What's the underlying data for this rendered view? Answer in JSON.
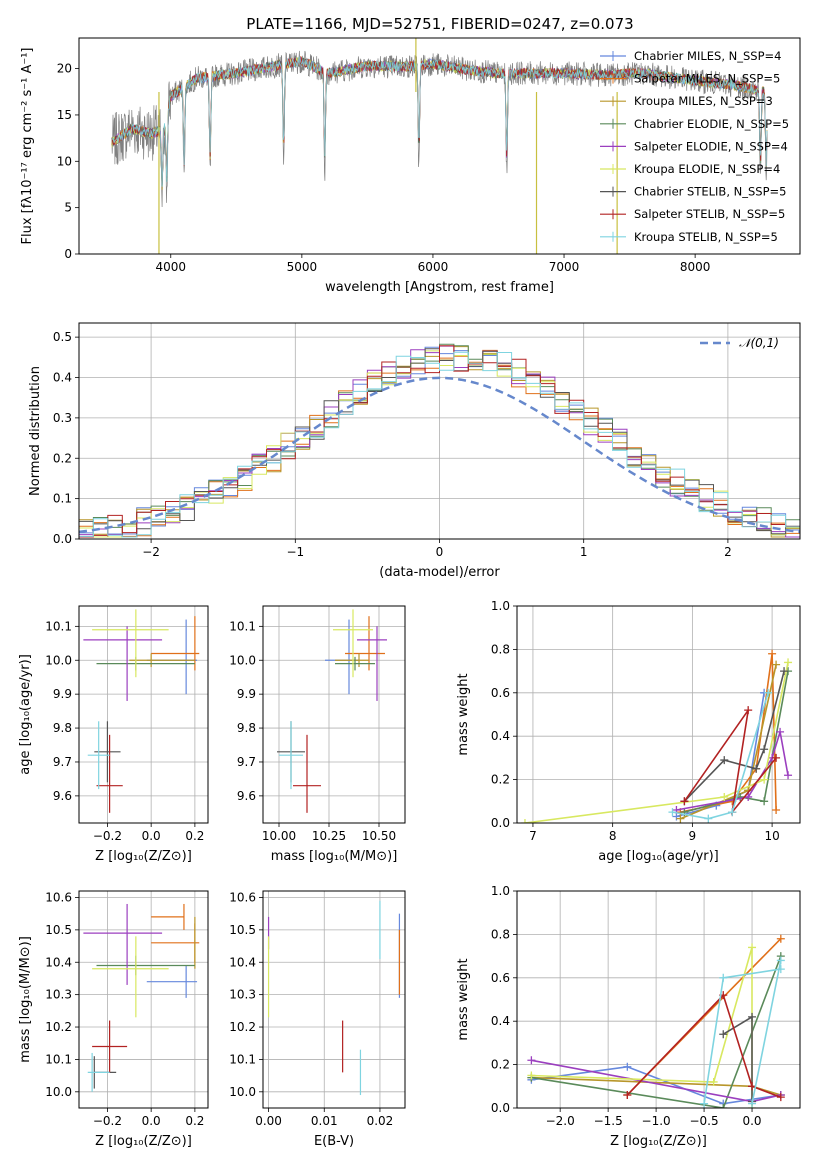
{
  "title": "PLATE=1166, MJD=52751, FIBERID=0247, z=0.073",
  "colors": {
    "Chabrier MILES": "#6688dd",
    "Salpeter MILES": "#e0701a",
    "Kroupa MILES": "#b8962a",
    "Chabrier ELODIE": "#5a8a5a",
    "Salpeter ELODIE": "#9b3fbf",
    "Kroupa ELODIE": "#d8e860",
    "Chabrier STELIB": "#555555",
    "Salpeter STELIB": "#b22222",
    "Kroupa STELIB": "#7fd4e0",
    "gaussian": "#6688cc",
    "data": "#808080"
  },
  "chart_data": [
    {
      "type": "line",
      "xlabel": "wavelength [Angstrom, rest frame]",
      "ylabel": "Flux [fλ10⁻¹⁷ erg cm⁻² s⁻¹ A⁻¹]",
      "xlim": [
        3300,
        8800
      ],
      "ylim": [
        0,
        23.3
      ],
      "xticks": [
        "4000",
        "5000",
        "6000",
        "7000",
        "8000"
      ],
      "yticks": [
        "0",
        "5",
        "10",
        "15",
        "20"
      ],
      "legend": [
        "Chabrier MILES, N_SSP=4",
        "Salpeter MILES, N_SSP=5",
        "Kroupa MILES, N_SSP=3",
        "Chabrier ELODIE, N_SSP=5",
        "Salpeter ELODIE, N_SSP=4",
        "Kroupa ELODIE, N_SSP=4",
        "Chabrier STELIB, N_SSP=5",
        "Salpeter STELIB, N_SSP=5",
        "Kroupa STELIB, N_SSP=5"
      ],
      "legend_position": "upper right",
      "continuum": [
        [
          3550,
          12
        ],
        [
          3700,
          13.5
        ],
        [
          3850,
          13
        ],
        [
          3950,
          13.5
        ],
        [
          4000,
          17
        ],
        [
          4200,
          19
        ],
        [
          4500,
          19.5
        ],
        [
          4800,
          20.3
        ],
        [
          5000,
          20.8
        ],
        [
          5200,
          19.5
        ],
        [
          5500,
          20.3
        ],
        [
          5800,
          20.2
        ],
        [
          6000,
          20.5
        ],
        [
          6300,
          19.8
        ],
        [
          6500,
          19.5
        ],
        [
          6800,
          19.5
        ],
        [
          7000,
          19.5
        ],
        [
          7300,
          19.3
        ],
        [
          7600,
          19.5
        ],
        [
          8000,
          18.7
        ],
        [
          8300,
          18.2
        ],
        [
          8550,
          17.5
        ]
      ],
      "absorption_features": [
        [
          3934,
          8.5
        ],
        [
          3969,
          9.5
        ],
        [
          4102,
          15.5
        ],
        [
          4300,
          16.5
        ],
        [
          4861,
          17.5
        ],
        [
          5175,
          15.5
        ],
        [
          5893,
          16.5
        ],
        [
          6563,
          17.2
        ],
        [
          8498,
          13.5
        ],
        [
          8542,
          14.5
        ],
        [
          8662,
          14.5
        ]
      ],
      "spikes": [
        [
          3910,
          0
        ],
        [
          5870,
          23.3
        ],
        [
          6790,
          0
        ],
        [
          7405,
          0
        ]
      ]
    },
    {
      "type": "bar",
      "xlabel": "(data-model)/error",
      "ylabel": "Normed distribution",
      "xlim": [
        -2.5,
        2.5
      ],
      "ylim": [
        0,
        0.535
      ],
      "xticks": [
        "−2",
        "−1",
        "0",
        "1",
        "2"
      ],
      "yticks": [
        "0.0",
        "0.1",
        "0.2",
        "0.3",
        "0.4",
        "0.5"
      ],
      "legend": [
        "𝒩(0,1)"
      ],
      "legend_position": "upper right",
      "bin_edges_start": -2.5,
      "bin_width": 0.1,
      "bins": 50
    },
    {
      "type": "scatter",
      "xlabel": "Z [log₁₀(Z/Z⊙)]",
      "ylabel": "age  [log₁₀(age/yr)]",
      "xlim": [
        -0.33,
        0.26
      ],
      "ylim": [
        9.52,
        10.16
      ],
      "xticks": [
        "−0.2",
        "0.0",
        "0.2"
      ],
      "yticks": [
        "9.6",
        "9.7",
        "9.8",
        "9.9",
        "10.0",
        "10.1"
      ],
      "points": [
        {
          "series": "Chabrier MILES",
          "x": 0.16,
          "y": 10.0,
          "xerr": [
            0.18,
            0.05
          ],
          "yerr": [
            0.1,
            0.12
          ]
        },
        {
          "series": "Salpeter MILES",
          "x": 0.2,
          "y": 10.02,
          "xerr": [
            0.2,
            0.02
          ],
          "yerr": [
            0.05,
            0.11
          ]
        },
        {
          "series": "Kroupa MILES",
          "x": 0.0,
          "y": 10.0,
          "xerr": [
            0.1,
            0.2
          ],
          "yerr": [
            0.02,
            0.02
          ]
        },
        {
          "series": "Chabrier ELODIE",
          "x": -0.07,
          "y": 9.99,
          "xerr": [
            0.18,
            0.27
          ],
          "yerr": [
            0.02,
            0.02
          ]
        },
        {
          "series": "Salpeter ELODIE",
          "x": -0.11,
          "y": 10.06,
          "xerr": [
            0.2,
            0.16
          ],
          "yerr": [
            0.18,
            0.04
          ]
        },
        {
          "series": "Kroupa ELODIE",
          "x": -0.07,
          "y": 10.09,
          "xerr": [
            0.2,
            0.15
          ],
          "yerr": [
            0.14,
            0.06
          ]
        },
        {
          "series": "Chabrier STELIB",
          "x": -0.2,
          "y": 9.73,
          "xerr": [
            0.06,
            0.06
          ],
          "yerr": [
            0.09,
            0.09
          ]
        },
        {
          "series": "Salpeter STELIB",
          "x": -0.19,
          "y": 9.63,
          "xerr": [
            0.06,
            0.06
          ],
          "yerr": [
            0.08,
            0.15
          ]
        },
        {
          "series": "Kroupa STELIB",
          "x": -0.24,
          "y": 9.72,
          "xerr": [
            0.05,
            0.05
          ],
          "yerr": [
            0.1,
            0.1
          ]
        }
      ]
    },
    {
      "type": "scatter",
      "xlabel": "mass [log₁₀(M/M⊙)]",
      "ylabel": "",
      "xlim": [
        9.92,
        10.63
      ],
      "ylim": [
        9.52,
        10.16
      ],
      "xticks": [
        "10.00",
        "10.25",
        "10.50"
      ],
      "yticks": [
        "9.6",
        "9.7",
        "9.8",
        "9.9",
        "10.0",
        "10.1"
      ],
      "points": [
        {
          "series": "Chabrier MILES",
          "x": 10.35,
          "y": 10.0,
          "xerr": [
            0.12,
            0.05
          ],
          "yerr": [
            0.1,
            0.12
          ]
        },
        {
          "series": "Salpeter MILES",
          "x": 10.45,
          "y": 10.02,
          "xerr": [
            0.12,
            0.08
          ],
          "yerr": [
            0.05,
            0.11
          ]
        },
        {
          "series": "Kroupa MILES",
          "x": 10.4,
          "y": 10.0,
          "xerr": [
            0.12,
            0.05
          ],
          "yerr": [
            0.02,
            0.02
          ]
        },
        {
          "series": "Chabrier ELODIE",
          "x": 10.38,
          "y": 9.99,
          "xerr": [
            0.1,
            0.1
          ],
          "yerr": [
            0.02,
            0.02
          ]
        },
        {
          "series": "Salpeter ELODIE",
          "x": 10.49,
          "y": 10.06,
          "xerr": [
            0.1,
            0.05
          ],
          "yerr": [
            0.18,
            0.04
          ]
        },
        {
          "series": "Kroupa ELODIE",
          "x": 10.37,
          "y": 10.09,
          "xerr": [
            0.1,
            0.1
          ],
          "yerr": [
            0.14,
            0.06
          ]
        },
        {
          "series": "Chabrier STELIB",
          "x": 10.06,
          "y": 9.73,
          "xerr": [
            0.07,
            0.07
          ],
          "yerr": [
            0.09,
            0.09
          ]
        },
        {
          "series": "Salpeter STELIB",
          "x": 10.14,
          "y": 9.63,
          "xerr": [
            0.07,
            0.07
          ],
          "yerr": [
            0.08,
            0.15
          ]
        },
        {
          "series": "Kroupa STELIB",
          "x": 10.06,
          "y": 9.72,
          "xerr": [
            0.06,
            0.06
          ],
          "yerr": [
            0.1,
            0.1
          ]
        }
      ]
    },
    {
      "type": "line",
      "xlabel": "age  [log₁₀(age/yr)]",
      "ylabel": "mass weight",
      "xlim": [
        6.8,
        10.35
      ],
      "ylim": [
        0,
        1.0
      ],
      "xticks": [
        "7",
        "8",
        "9",
        "10"
      ],
      "yticks": [
        "0.0",
        "0.2",
        "0.4",
        "0.6",
        "0.8",
        "1.0"
      ],
      "series": [
        {
          "name": "Chabrier MILES",
          "x": [
            8.8,
            9.3,
            9.7,
            9.9
          ],
          "y": [
            0.03,
            0.08,
            0.15,
            0.6
          ]
        },
        {
          "name": "Salpeter MILES",
          "x": [
            8.85,
            9.5,
            9.8,
            10.0,
            10.05
          ],
          "y": [
            0.05,
            0.1,
            0.25,
            0.78,
            0.06
          ]
        },
        {
          "name": "Kroupa MILES",
          "x": [
            8.85,
            9.7,
            10.05
          ],
          "y": [
            0.02,
            0.15,
            0.73
          ]
        },
        {
          "name": "Chabrier ELODIE",
          "x": [
            8.9,
            9.6,
            9.9,
            10.2
          ],
          "y": [
            0.05,
            0.12,
            0.1,
            0.7
          ]
        },
        {
          "name": "Salpeter ELODIE",
          "x": [
            8.8,
            9.7,
            10.0,
            10.1,
            10.2
          ],
          "y": [
            0.06,
            0.12,
            0.3,
            0.42,
            0.22
          ]
        },
        {
          "name": "Kroupa ELODIE",
          "x": [
            6.9,
            9.4,
            9.9,
            10.2
          ],
          "y": [
            0.0,
            0.12,
            0.2,
            0.74
          ]
        },
        {
          "name": "Chabrier STELIB",
          "x": [
            8.9,
            9.4,
            9.8,
            9.9,
            10.15
          ],
          "y": [
            0.1,
            0.29,
            0.25,
            0.34,
            0.7
          ]
        },
        {
          "name": "Salpeter STELIB",
          "x": [
            8.9,
            9.7,
            9.5,
            10.05
          ],
          "y": [
            0.1,
            0.52,
            0.05,
            0.3
          ]
        },
        {
          "name": "Kroupa STELIB",
          "x": [
            8.75,
            9.2,
            9.5,
            9.95
          ],
          "y": [
            0.05,
            0.02,
            0.05,
            0.6
          ]
        }
      ]
    },
    {
      "type": "scatter",
      "xlabel": "Z [log₁₀(Z/Z⊙)]",
      "ylabel": "mass [log₁₀(M/M⊙)]",
      "xlim": [
        -0.33,
        0.26
      ],
      "ylim": [
        9.95,
        10.62
      ],
      "xticks": [
        "−0.2",
        "0.0",
        "0.2"
      ],
      "yticks": [
        "10.0",
        "10.1",
        "10.2",
        "10.3",
        "10.4",
        "10.5",
        "10.6"
      ],
      "points": [
        {
          "series": "Chabrier MILES",
          "x": 0.16,
          "y": 10.34,
          "xerr": [
            0.18,
            0.05
          ],
          "yerr": [
            0.05,
            0.05
          ]
        },
        {
          "series": "Salpeter MILES",
          "x": 0.2,
          "y": 10.46,
          "xerr": [
            0.2,
            0.02
          ],
          "yerr": [
            0.06,
            0.06
          ]
        },
        {
          "series": "Kroupa MILES",
          "x": 0.2,
          "y": 10.46,
          "xerr": [
            0.0,
            0.0
          ],
          "yerr": [
            0.08,
            0.08
          ]
        },
        {
          "series": "Chabrier ELODIE",
          "x": -0.07,
          "y": 10.39,
          "xerr": [
            0.18,
            0.27
          ],
          "yerr": [
            0.03,
            0.03
          ]
        },
        {
          "series": "Salpeter ELODIE",
          "x": -0.11,
          "y": 10.49,
          "xerr": [
            0.2,
            0.16
          ],
          "yerr": [
            0.16,
            0.09
          ]
        },
        {
          "series": "Kroupa ELODIE",
          "x": -0.07,
          "y": 10.38,
          "xerr": [
            0.2,
            0.15
          ],
          "yerr": [
            0.15,
            0.1
          ]
        },
        {
          "series": "Chabrier STELIB",
          "x": -0.26,
          "y": 10.06,
          "xerr": [
            0.0,
            0.1
          ],
          "yerr": [
            0.05,
            0.05
          ]
        },
        {
          "series": "Salpeter STELIB",
          "x": -0.19,
          "y": 10.14,
          "xerr": [
            0.08,
            0.08
          ],
          "yerr": [
            0.08,
            0.08
          ]
        },
        {
          "series": "Kroupa STELIB",
          "x": -0.27,
          "y": 10.06,
          "xerr": [
            0.02,
            0.08
          ],
          "yerr": [
            0.06,
            0.06
          ]
        },
        {
          "series": "Salpeter MILES",
          "x": 0.0,
          "y": 10.54,
          "xerr": [
            0.0,
            0.15
          ],
          "yerr": [
            0.0,
            0.0
          ]
        },
        {
          "series": "Salpeter MILES",
          "x": 0.15,
          "y": 10.54,
          "xerr": [
            0.0,
            0.0
          ],
          "yerr": [
            0.04,
            0.04
          ]
        }
      ]
    },
    {
      "type": "scatter",
      "xlabel": "E(B-V)",
      "ylabel": "",
      "xlim": [
        -0.001,
        0.0245
      ],
      "ylim": [
        9.95,
        10.62
      ],
      "xticks": [
        "0.00",
        "0.01",
        "0.02"
      ],
      "yticks": [
        "10.0",
        "10.1",
        "10.2",
        "10.3",
        "10.4",
        "10.5",
        "10.6"
      ],
      "points": [
        {
          "series": "Salpeter ELODIE",
          "x": 0.0,
          "y": 10.49,
          "xerr": [
            0,
            0
          ],
          "yerr": [
            0.05,
            0.05
          ]
        },
        {
          "series": "Kroupa ELODIE",
          "x": 0.0,
          "y": 10.38,
          "xerr": [
            0,
            0
          ],
          "yerr": [
            0.15,
            0.1
          ]
        },
        {
          "series": "Salpeter STELIB",
          "x": 0.0133,
          "y": 10.14,
          "xerr": [
            0,
            0
          ],
          "yerr": [
            0.08,
            0.08
          ]
        },
        {
          "series": "Kroupa STELIB",
          "x": 0.0165,
          "y": 10.06,
          "xerr": [
            0,
            0
          ],
          "yerr": [
            0.07,
            0.07
          ]
        },
        {
          "series": "Chabrier MILES",
          "x": 0.0235,
          "y": 10.42,
          "xerr": [
            0,
            0
          ],
          "yerr": [
            0.13,
            0.13
          ]
        },
        {
          "series": "Salpeter MILES",
          "x": 0.0235,
          "y": 10.4,
          "xerr": [
            0,
            0
          ],
          "yerr": [
            0.1,
            0.1
          ]
        },
        {
          "series": "Kroupa STELIB",
          "x": 0.02,
          "y": 10.5,
          "xerr": [
            0,
            0
          ],
          "yerr": [
            0.09,
            0.09
          ]
        }
      ]
    },
    {
      "type": "line",
      "xlabel": "Z [log₁₀(Z/Z⊙)]",
      "ylabel": "mass weight",
      "xlim": [
        -2.45,
        0.5
      ],
      "ylim": [
        0,
        1.0
      ],
      "xticks": [
        "−2.0",
        "−1.5",
        "−1.0",
        "−0.5",
        "0.0"
      ],
      "yticks": [
        "0.0",
        "0.2",
        "0.4",
        "0.6",
        "0.8",
        "1.0"
      ],
      "series": [
        {
          "name": "Chabrier MILES",
          "x": [
            -2.3,
            -1.3,
            -0.3,
            0.3
          ],
          "y": [
            0.13,
            0.19,
            0.02,
            0.06
          ]
        },
        {
          "name": "Salpeter MILES",
          "x": [
            -1.3,
            0.3
          ],
          "y": [
            0.06,
            0.78
          ]
        },
        {
          "name": "Kroupa MILES",
          "x": [
            -2.3,
            0.0,
            0.3
          ],
          "y": [
            0.14,
            0.1,
            0.06
          ]
        },
        {
          "name": "Chabrier ELODIE",
          "x": [
            -2.3,
            -0.3,
            0.3
          ],
          "y": [
            0.14,
            0.0,
            0.7
          ]
        },
        {
          "name": "Salpeter ELODIE",
          "x": [
            -2.3,
            0.0,
            0.3
          ],
          "y": [
            0.22,
            0.03,
            0.06
          ]
        },
        {
          "name": "Kroupa ELODIE",
          "x": [
            -2.3,
            -0.4,
            0.0,
            0.0
          ],
          "y": [
            0.15,
            0.12,
            0.74,
            0.0
          ]
        },
        {
          "name": "Chabrier STELIB",
          "x": [
            -0.3,
            0.0,
            0.0
          ],
          "y": [
            0.34,
            0.42,
            0.03
          ]
        },
        {
          "name": "Salpeter STELIB",
          "x": [
            -1.3,
            -0.3,
            0.0,
            0.3
          ],
          "y": [
            0.06,
            0.52,
            0.1,
            0.05
          ]
        },
        {
          "name": "Kroupa STELIB",
          "x": [
            -0.5,
            -0.3,
            0.3
          ],
          "y": [
            0.02,
            0.6,
            0.64
          ]
        },
        {
          "name": "Kroupa STELIB",
          "x": [
            0.0,
            0.3
          ],
          "y": [
            0.02,
            0.68
          ]
        }
      ]
    }
  ]
}
